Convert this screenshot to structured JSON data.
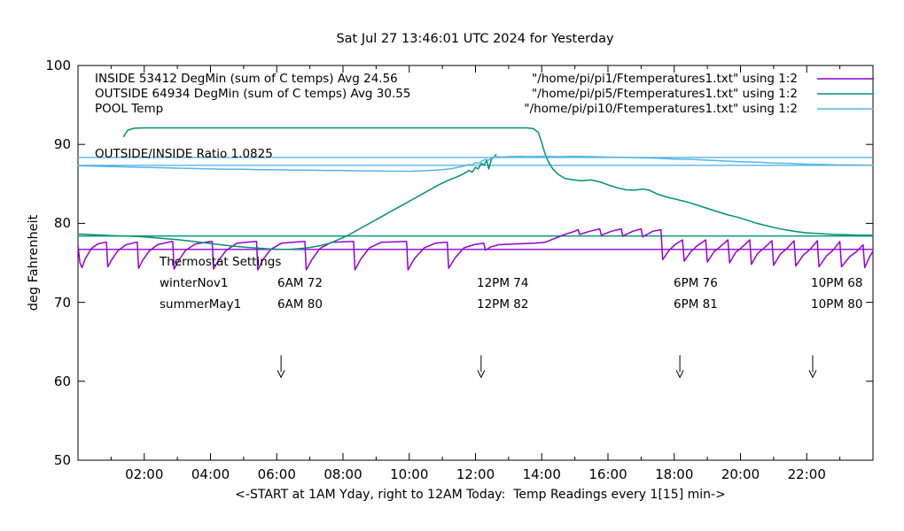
{
  "title": "Sat Jul 27 13:46:01 UTC 2024 for Yesterday",
  "axes": {
    "y_label": "deg Fahrenheit",
    "x_label": "<-START at 1AM Yday, right to 12AM Today:  Temp Readings every 1[15] min->",
    "y_ticks": [
      50,
      60,
      70,
      80,
      90,
      100
    ],
    "x_tick_labels": [
      {
        "hour": 2,
        "label": "02:00"
      },
      {
        "hour": 4,
        "label": "04:00"
      },
      {
        "hour": 6,
        "label": "06:00"
      },
      {
        "hour": 8,
        "label": "08:00"
      },
      {
        "hour": 10,
        "label": "10:00"
      },
      {
        "hour": 12,
        "label": "12:00"
      },
      {
        "hour": 14,
        "label": "14:00"
      },
      {
        "hour": 16,
        "label": "16:00"
      },
      {
        "hour": 18,
        "label": "18:00"
      },
      {
        "hour": 20,
        "label": "20:00"
      },
      {
        "hour": 22,
        "label": "22:00"
      }
    ]
  },
  "legend": {
    "entries": [
      {
        "name": "inside",
        "left": "INSIDE 53412 DegMin (sum of C temps) Avg 24.56",
        "right": "\"/home/pi/pi1/Ftemperatures1.txt\" using 1:2",
        "color": "#9400d3"
      },
      {
        "name": "outside",
        "left": "OUTSIDE 64934 DegMin (sum of C temps) Avg 30.55",
        "right": "\"/home/pi/pi5/Ftemperatures1.txt\" using 1:2",
        "color": "#009073"
      },
      {
        "name": "pool",
        "left": "POOL Temp",
        "right": "\"/home/pi/pi10/Ftemperatures1.txt\" using 1:2",
        "color": "#56b4e9"
      }
    ]
  },
  "annotations": {
    "ratio_label": "OUTSIDE/INSIDE Ratio 1.0825",
    "thermostat": {
      "title": "Thermostat Settings",
      "rows": [
        {
          "name": "winterNov1",
          "settings": [
            "6AM 72",
            "12PM 74",
            "6PM 76",
            "10PM 68"
          ]
        },
        {
          "name": "summerMay1",
          "settings": [
            "6AM 80",
            "12PM 82",
            "6PM 81",
            "10PM 80"
          ]
        }
      ]
    }
  },
  "colors": {
    "inside": "#9400d3",
    "outside": "#009073",
    "pool": "#56b4e9",
    "frame": "#000000"
  },
  "chart_data": {
    "type": "line",
    "title": "Sat Jul 27 13:46:01 UTC 2024 for Yesterday",
    "xlabel": "<-START at 1AM Yday, right to 12AM Today:  Temp Readings every 1[15] min->",
    "ylabel": "deg Fahrenheit",
    "xlim_hours": [
      0,
      24
    ],
    "ylim": [
      50,
      100
    ],
    "grid": false,
    "series": [
      {
        "name": "inside-temp",
        "label": "INSIDE",
        "color": "#9400d3",
        "points": [
          [
            0,
            77.2
          ],
          [
            0.06,
            75.0
          ],
          [
            0.12,
            74.4
          ],
          [
            0.22,
            75.5
          ],
          [
            0.4,
            76.8
          ],
          [
            0.6,
            77.4
          ],
          [
            0.8,
            77.6
          ],
          [
            0.86,
            77.6
          ],
          [
            0.9,
            74.5
          ],
          [
            1.02,
            75.4
          ],
          [
            1.2,
            76.5
          ],
          [
            1.45,
            77.3
          ],
          [
            1.75,
            77.6
          ],
          [
            1.79,
            77.6
          ],
          [
            1.83,
            74.3
          ],
          [
            1.95,
            75.3
          ],
          [
            2.15,
            76.5
          ],
          [
            2.4,
            77.3
          ],
          [
            2.82,
            77.7
          ],
          [
            2.86,
            77.7
          ],
          [
            2.9,
            74.2
          ],
          [
            3.04,
            75.3
          ],
          [
            3.25,
            76.6
          ],
          [
            3.55,
            77.4
          ],
          [
            4.0,
            77.7
          ],
          [
            4.05,
            77.7
          ],
          [
            4.09,
            74.2
          ],
          [
            4.24,
            75.3
          ],
          [
            4.48,
            76.6
          ],
          [
            4.8,
            77.5
          ],
          [
            5.34,
            77.7
          ],
          [
            5.39,
            77.7
          ],
          [
            5.43,
            74.1
          ],
          [
            5.58,
            75.4
          ],
          [
            5.82,
            76.7
          ],
          [
            6.15,
            77.5
          ],
          [
            6.8,
            77.7
          ],
          [
            6.85,
            77.7
          ],
          [
            6.89,
            74.1
          ],
          [
            7.06,
            75.4
          ],
          [
            7.3,
            76.8
          ],
          [
            7.65,
            77.6
          ],
          [
            8.27,
            77.7
          ],
          [
            8.32,
            77.7
          ],
          [
            8.36,
            74.1
          ],
          [
            8.54,
            75.5
          ],
          [
            8.8,
            76.9
          ],
          [
            9.15,
            77.6
          ],
          [
            9.86,
            77.7
          ],
          [
            9.92,
            77.7
          ],
          [
            9.96,
            74.1
          ],
          [
            10.15,
            75.5
          ],
          [
            10.45,
            76.9
          ],
          [
            10.8,
            77.5
          ],
          [
            11.1,
            77.6
          ],
          [
            11.15,
            77.6
          ],
          [
            11.19,
            74.3
          ],
          [
            11.38,
            75.6
          ],
          [
            11.65,
            76.9
          ],
          [
            11.95,
            77.3
          ],
          [
            12.25,
            77.5
          ],
          [
            12.3,
            76.6
          ],
          [
            12.45,
            77.0
          ],
          [
            12.7,
            77.3
          ],
          [
            13.2,
            77.4
          ],
          [
            13.8,
            77.5
          ],
          [
            14.1,
            77.6
          ],
          [
            14.4,
            78.1
          ],
          [
            14.7,
            78.6
          ],
          [
            15.0,
            79.0
          ],
          [
            15.1,
            79.2
          ],
          [
            15.14,
            78.6
          ],
          [
            15.45,
            79.0
          ],
          [
            15.75,
            79.3
          ],
          [
            15.8,
            78.5
          ],
          [
            16.1,
            79.0
          ],
          [
            16.4,
            79.3
          ],
          [
            16.45,
            78.4
          ],
          [
            16.75,
            79.0
          ],
          [
            17.0,
            79.3
          ],
          [
            17.05,
            78.3
          ],
          [
            17.35,
            79.0
          ],
          [
            17.6,
            79.2
          ],
          [
            17.65,
            75.4
          ],
          [
            17.85,
            76.6
          ],
          [
            18.05,
            77.4
          ],
          [
            18.25,
            77.9
          ],
          [
            18.3,
            75.2
          ],
          [
            18.5,
            76.4
          ],
          [
            18.7,
            77.2
          ],
          [
            18.95,
            77.9
          ],
          [
            19.0,
            75.1
          ],
          [
            19.2,
            76.4
          ],
          [
            19.4,
            77.1
          ],
          [
            19.62,
            77.9
          ],
          [
            19.67,
            75.0
          ],
          [
            19.85,
            76.3
          ],
          [
            20.05,
            77.0
          ],
          [
            20.28,
            77.9
          ],
          [
            20.33,
            74.8
          ],
          [
            20.52,
            76.2
          ],
          [
            20.72,
            76.9
          ],
          [
            20.95,
            77.8
          ],
          [
            21.0,
            74.7
          ],
          [
            21.2,
            76.1
          ],
          [
            21.4,
            76.8
          ],
          [
            21.62,
            77.8
          ],
          [
            21.67,
            74.6
          ],
          [
            21.9,
            76.0
          ],
          [
            22.1,
            76.7
          ],
          [
            22.32,
            77.8
          ],
          [
            22.37,
            74.5
          ],
          [
            22.6,
            75.9
          ],
          [
            22.8,
            76.6
          ],
          [
            23.0,
            77.7
          ],
          [
            23.05,
            74.5
          ],
          [
            23.3,
            75.8
          ],
          [
            23.5,
            76.4
          ],
          [
            23.7,
            77.3
          ],
          [
            23.75,
            74.4
          ],
          [
            23.88,
            75.6
          ],
          [
            24,
            76.5
          ]
        ]
      },
      {
        "name": "outside-temp",
        "label": "OUTSIDE",
        "color": "#009073",
        "points": [
          [
            0,
            78.65
          ],
          [
            0.5,
            78.55
          ],
          [
            1,
            78.45
          ],
          [
            1.5,
            78.4
          ],
          [
            2,
            78.3
          ],
          [
            2.5,
            78.1
          ],
          [
            3,
            77.95
          ],
          [
            3.5,
            77.7
          ],
          [
            4,
            77.45
          ],
          [
            4.5,
            77.2
          ],
          [
            5,
            77.0
          ],
          [
            5.5,
            76.85
          ],
          [
            5.8,
            76.75
          ],
          [
            6.1,
            76.7
          ],
          [
            6.4,
            76.7
          ],
          [
            6.7,
            76.8
          ],
          [
            7.0,
            76.95
          ],
          [
            7.3,
            77.15
          ],
          [
            7.6,
            77.5
          ],
          [
            7.9,
            78.0
          ],
          [
            8.2,
            78.6
          ],
          [
            8.5,
            79.3
          ],
          [
            8.8,
            80.0
          ],
          [
            9.1,
            80.7
          ],
          [
            9.4,
            81.4
          ],
          [
            9.7,
            82.1
          ],
          [
            10.0,
            82.8
          ],
          [
            10.3,
            83.5
          ],
          [
            10.6,
            84.2
          ],
          [
            10.9,
            84.9
          ],
          [
            11.2,
            85.5
          ],
          [
            11.45,
            85.9
          ],
          [
            11.65,
            86.3
          ],
          [
            11.8,
            86.7
          ],
          [
            11.9,
            86.5
          ],
          [
            12.0,
            87.1
          ],
          [
            12.08,
            86.9
          ],
          [
            12.18,
            87.6
          ],
          [
            12.26,
            87.4
          ],
          [
            12.34,
            88.0
          ],
          [
            12.4,
            86.9
          ],
          [
            12.48,
            88.1
          ],
          [
            12.55,
            88.4
          ],
          [
            12.62,
            88.7
          ]
        ]
      },
      {
        "name": "outside-high-plateau",
        "label": "",
        "color": "#009073",
        "points": [
          [
            1.38,
            91.0
          ],
          [
            1.5,
            91.8
          ],
          [
            1.7,
            92.05
          ],
          [
            2.0,
            92.1
          ],
          [
            13.55,
            92.1
          ],
          [
            13.75,
            92.0
          ],
          [
            13.9,
            91.5
          ],
          [
            14.0,
            90.2
          ],
          [
            14.1,
            88.8
          ],
          [
            14.2,
            87.8
          ],
          [
            14.35,
            86.8
          ],
          [
            14.5,
            86.2
          ],
          [
            14.7,
            85.7
          ],
          [
            14.95,
            85.5
          ],
          [
            15.2,
            85.4
          ],
          [
            15.5,
            85.5
          ],
          [
            15.8,
            85.2
          ],
          [
            16.05,
            84.8
          ],
          [
            16.3,
            84.5
          ],
          [
            16.55,
            84.25
          ],
          [
            16.8,
            84.2
          ],
          [
            17.05,
            84.35
          ],
          [
            17.25,
            84.2
          ],
          [
            17.5,
            83.7
          ],
          [
            17.8,
            83.3
          ],
          [
            18.1,
            83.0
          ],
          [
            18.4,
            82.7
          ],
          [
            18.7,
            82.3
          ],
          [
            19.0,
            81.9
          ],
          [
            19.3,
            81.5
          ],
          [
            19.6,
            81.1
          ],
          [
            19.9,
            80.8
          ],
          [
            20.2,
            80.4
          ],
          [
            20.5,
            80.0
          ],
          [
            20.8,
            79.7
          ],
          [
            21.1,
            79.4
          ],
          [
            21.4,
            79.15
          ],
          [
            21.7,
            78.95
          ],
          [
            22.0,
            78.8
          ],
          [
            22.4,
            78.7
          ],
          [
            22.8,
            78.6
          ],
          [
            23.2,
            78.55
          ],
          [
            23.6,
            78.5
          ],
          [
            24,
            78.5
          ]
        ]
      },
      {
        "name": "pool-temp",
        "label": "POOL",
        "color": "#56b4e9",
        "points": [
          [
            0,
            87.3
          ],
          [
            0.5,
            87.25
          ],
          [
            1,
            87.2
          ],
          [
            1.5,
            87.15
          ],
          [
            2,
            87.1
          ],
          [
            2.5,
            87.05
          ],
          [
            3,
            87.0
          ],
          [
            3.5,
            86.95
          ],
          [
            4,
            86.9
          ],
          [
            4.5,
            86.85
          ],
          [
            5,
            86.85
          ],
          [
            5.5,
            86.8
          ],
          [
            6,
            86.8
          ],
          [
            6.5,
            86.75
          ],
          [
            7,
            86.75
          ],
          [
            7.5,
            86.7
          ],
          [
            8,
            86.7
          ],
          [
            8.5,
            86.65
          ],
          [
            9,
            86.65
          ],
          [
            9.5,
            86.6
          ],
          [
            10,
            86.6
          ],
          [
            10.3,
            86.65
          ],
          [
            10.6,
            86.7
          ],
          [
            11,
            86.8
          ],
          [
            11.3,
            86.95
          ],
          [
            11.6,
            87.2
          ],
          [
            11.8,
            87.45
          ],
          [
            11.9,
            87.4
          ],
          [
            12.0,
            87.7
          ],
          [
            12.1,
            87.6
          ],
          [
            12.2,
            87.9
          ],
          [
            12.3,
            88.1
          ],
          [
            12.4,
            88.0
          ],
          [
            12.5,
            88.3
          ],
          [
            12.6,
            88.45
          ],
          [
            12.8,
            88.4
          ],
          [
            13.0,
            88.45
          ],
          [
            13.3,
            88.5
          ],
          [
            13.6,
            88.45
          ],
          [
            14.0,
            88.5
          ],
          [
            14.5,
            88.45
          ],
          [
            15.0,
            88.5
          ],
          [
            15.5,
            88.45
          ],
          [
            16.0,
            88.4
          ],
          [
            16.5,
            88.35
          ],
          [
            17.0,
            88.3
          ],
          [
            17.5,
            88.25
          ],
          [
            18.0,
            88.15
          ],
          [
            18.5,
            88.1
          ],
          [
            19.0,
            88.0
          ],
          [
            19.5,
            87.9
          ],
          [
            20.0,
            87.8
          ],
          [
            20.5,
            87.75
          ],
          [
            21.0,
            87.65
          ],
          [
            21.5,
            87.6
          ],
          [
            22.0,
            87.5
          ],
          [
            22.5,
            87.45
          ],
          [
            23.0,
            87.4
          ],
          [
            23.5,
            87.4
          ],
          [
            24,
            87.35
          ]
        ]
      }
    ],
    "reference_lines": [
      {
        "name": "pool-upper-line",
        "color": "#56b4e9",
        "value": 88.35
      },
      {
        "name": "pool-start-line",
        "color": "#56b4e9",
        "value": 87.35
      },
      {
        "name": "outside-start-line",
        "color": "#009073",
        "value": 78.4
      },
      {
        "name": "inside-ref-line",
        "color": "#9400d3",
        "value": 76.7
      }
    ],
    "arrows": {
      "hours": [
        6.13,
        12.17,
        18.17,
        22.18
      ],
      "tail_f": 63.3,
      "tip_f": 60.5
    }
  }
}
